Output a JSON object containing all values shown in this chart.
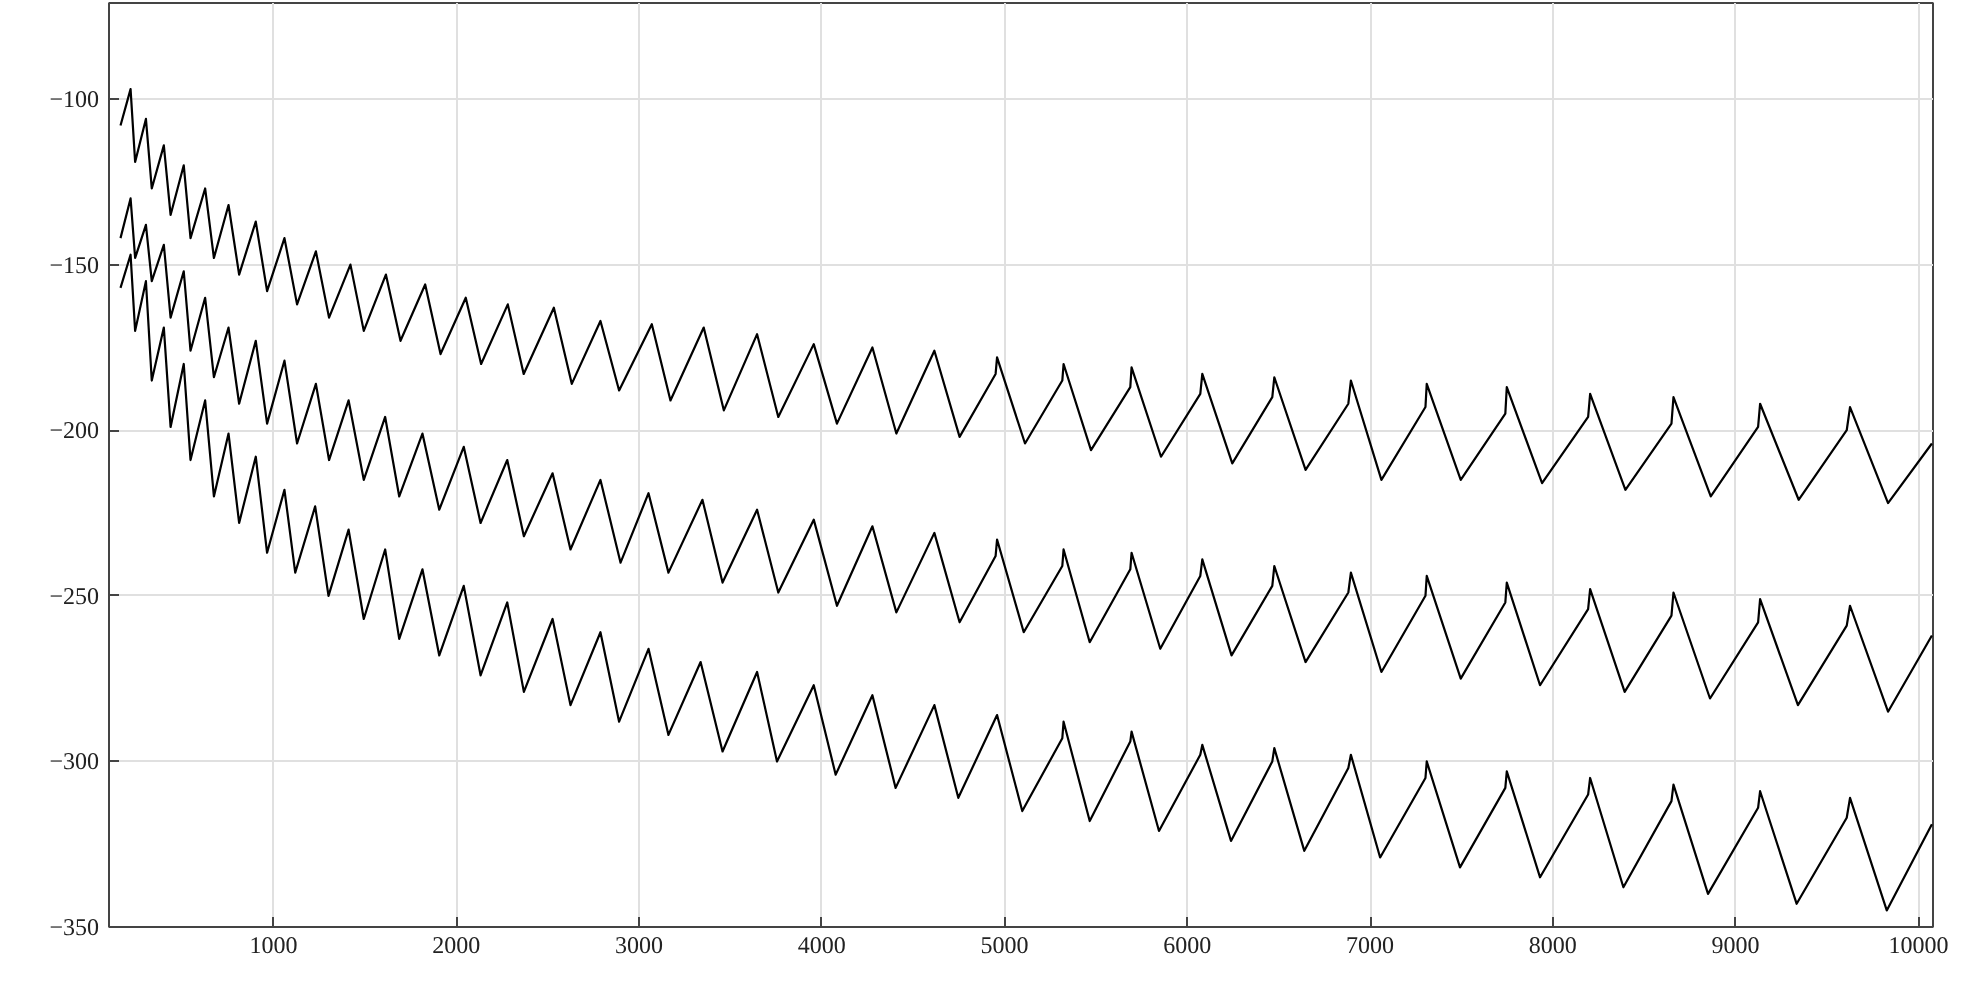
{
  "chart_data": {
    "type": "line",
    "xlim": [
      100,
      10080
    ],
    "ylim": [
      -350,
      -71
    ],
    "xticks": [
      1000,
      2000,
      3000,
      4000,
      5000,
      6000,
      7000,
      8000,
      9000,
      10000
    ],
    "yticks": [
      -350,
      -300,
      -250,
      -200,
      -150,
      -100
    ],
    "grid": true,
    "line_style": "solid",
    "series": [
      {
        "color": "#000000",
        "x": [
          163,
          218,
          243,
          302,
          334,
          400,
          437,
          509,
          546,
          626,
          674,
          754,
          812,
          903,
          965,
          1060,
          1129,
          1232,
          1304,
          1421,
          1494,
          1615,
          1695,
          1830,
          1914,
          2052,
          2136,
          2282,
          2369,
          2534,
          2632,
          2789,
          2891,
          3070,
          3172,
          3354,
          3464,
          3646,
          3762,
          3956,
          4083,
          4277,
          4408,
          4616,
          4754,
          4951,
          4959,
          5112,
          5316,
          5323,
          5473,
          5688,
          5695,
          5856,
          6071,
          6082,
          6246,
          6465,
          6476,
          6647,
          6881,
          6895,
          7062,
          7303,
          7310,
          7496,
          7740,
          7748,
          7941,
          8193,
          8204,
          8397,
          8649,
          8660,
          8864,
          9123,
          9134,
          9345,
          9608,
          9626,
          9834,
          10074
        ],
        "values": [
          -108,
          -97,
          -119,
          -106,
          -127,
          -114,
          -135,
          -120,
          -142,
          -127,
          -148,
          -132,
          -153,
          -137,
          -158,
          -142,
          -162,
          -146,
          -166,
          -150,
          -170,
          -153,
          -173,
          -156,
          -177,
          -160,
          -180,
          -162,
          -183,
          -163,
          -186,
          -167,
          -188,
          -168,
          -191,
          -169,
          -194,
          -171,
          -196,
          -174,
          -198,
          -175,
          -201,
          -176,
          -202,
          -183,
          -178,
          -204,
          -185,
          -180,
          -206,
          -187,
          -181,
          -208,
          -189,
          -183,
          -210,
          -190,
          -184,
          -212,
          -192,
          -185,
          -215,
          -193,
          -186,
          -215,
          -195,
          -187,
          -216,
          -196,
          -189,
          -218,
          -198,
          -190,
          -220,
          -199,
          -192,
          -221,
          -200,
          -193,
          -222,
          -204
        ]
      },
      {
        "color": "#000000",
        "x": [
          163,
          218,
          243,
          302,
          334,
          400,
          437,
          509,
          546,
          626,
          674,
          754,
          812,
          903,
          965,
          1060,
          1129,
          1232,
          1304,
          1411,
          1494,
          1611,
          1688,
          1815,
          1907,
          2041,
          2133,
          2279,
          2370,
          2527,
          2625,
          2789,
          2899,
          3052,
          3161,
          3347,
          3457,
          3646,
          3762,
          3956,
          4083,
          4277,
          4408,
          4616,
          4754,
          4951,
          4959,
          5105,
          5316,
          5323,
          5466,
          5688,
          5695,
          5852,
          6071,
          6082,
          6242,
          6465,
          6476,
          6647,
          6881,
          6895,
          7062,
          7303,
          7310,
          7496,
          7740,
          7748,
          7930,
          8193,
          8204,
          8393,
          8649,
          8660,
          8860,
          9123,
          9134,
          9341,
          9608,
          9626,
          9834,
          10074
        ],
        "values": [
          -142,
          -130,
          -148,
          -138,
          -155,
          -144,
          -166,
          -152,
          -176,
          -160,
          -184,
          -169,
          -192,
          -173,
          -198,
          -179,
          -204,
          -186,
          -209,
          -191,
          -215,
          -196,
          -220,
          -201,
          -224,
          -205,
          -228,
          -209,
          -232,
          -213,
          -236,
          -215,
          -240,
          -219,
          -243,
          -221,
          -246,
          -224,
          -249,
          -227,
          -253,
          -229,
          -255,
          -231,
          -258,
          -238,
          -233,
          -261,
          -241,
          -236,
          -264,
          -242,
          -237,
          -266,
          -244,
          -239,
          -268,
          -247,
          -241,
          -270,
          -249,
          -243,
          -273,
          -250,
          -244,
          -275,
          -252,
          -246,
          -277,
          -254,
          -248,
          -279,
          -256,
          -249,
          -281,
          -258,
          -251,
          -283,
          -259,
          -253,
          -285,
          -262
        ]
      },
      {
        "color": "#000000",
        "x": [
          163,
          218,
          243,
          302,
          334,
          400,
          437,
          509,
          546,
          626,
          674,
          754,
          812,
          903,
          965,
          1060,
          1119,
          1228,
          1301,
          1411,
          1494,
          1611,
          1688,
          1815,
          1907,
          2041,
          2133,
          2279,
          2370,
          2527,
          2625,
          2789,
          2891,
          3052,
          3161,
          3337,
          3457,
          3646,
          3755,
          3956,
          4076,
          4277,
          4404,
          4616,
          4747,
          4959,
          5097,
          5316,
          5323,
          5466,
          5688,
          5695,
          5845,
          6071,
          6082,
          6239,
          6465,
          6476,
          6640,
          6881,
          6895,
          7055,
          7303,
          7310,
          7492,
          7740,
          7748,
          7930,
          8193,
          8204,
          8386,
          8649,
          8660,
          8849,
          9123,
          9134,
          9334,
          9608,
          9626,
          9827,
          10074
        ],
        "values": [
          -157,
          -147,
          -170,
          -155,
          -185,
          -169,
          -199,
          -180,
          -209,
          -191,
          -220,
          -201,
          -228,
          -208,
          -237,
          -218,
          -243,
          -223,
          -250,
          -230,
          -257,
          -236,
          -263,
          -242,
          -268,
          -247,
          -274,
          -252,
          -279,
          -257,
          -283,
          -261,
          -288,
          -266,
          -292,
          -270,
          -297,
          -273,
          -300,
          -277,
          -304,
          -280,
          -308,
          -283,
          -311,
          -286,
          -315,
          -293,
          -288,
          -318,
          -294,
          -291,
          -321,
          -298,
          -295,
          -324,
          -300,
          -296,
          -327,
          -302,
          -298,
          -329,
          -305,
          -300,
          -332,
          -308,
          -303,
          -335,
          -310,
          -305,
          -338,
          -312,
          -307,
          -340,
          -314,
          -309,
          -343,
          -317,
          -311,
          -345,
          -319
        ]
      }
    ]
  }
}
